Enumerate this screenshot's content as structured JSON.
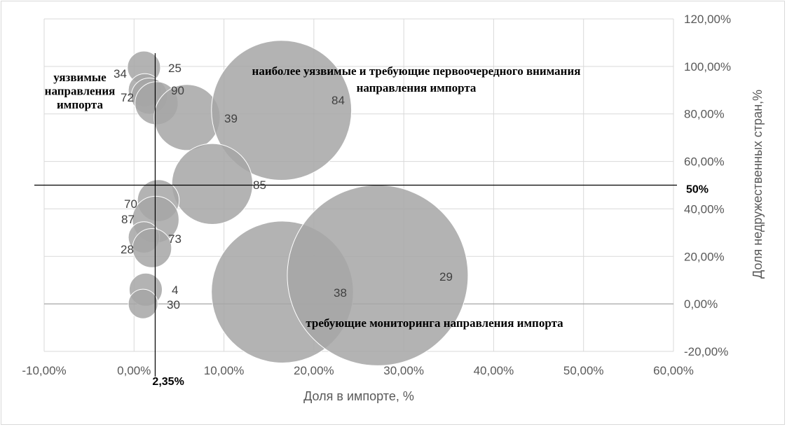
{
  "chart_data": {
    "type": "bubble",
    "xlabel": "Доля в импорте, %",
    "ylabel": "Доля недружественных стран,%",
    "xlim": [
      -10,
      60
    ],
    "ylim": [
      -20,
      120
    ],
    "x_ticks": [
      "-10,00%",
      "0,00%",
      "10,00%",
      "20,00%",
      "30,00%",
      "40,00%",
      "50,00%",
      "60,00%"
    ],
    "y_ticks": [
      "-20,00%",
      "0,00%",
      "20,00%",
      "40,00%",
      "60,00%",
      "80,00%",
      "100,00%",
      "120,00%"
    ],
    "grid": true,
    "reference_lines": {
      "x": {
        "value": 2.35,
        "label": "2,35%"
      },
      "y": {
        "value": 50,
        "label": "50%"
      }
    },
    "points": [
      {
        "label": "25",
        "x": 1.1,
        "y": 99.5,
        "size": 1
      },
      {
        "label": "34",
        "x": 1.2,
        "y": 90.0,
        "size": 1
      },
      {
        "label": "72",
        "x": 1.7,
        "y": 87.5,
        "size": 1.2
      },
      {
        "label": "90",
        "x": 2.5,
        "y": 84.5,
        "size": 1.7
      },
      {
        "label": "39",
        "x": 5.9,
        "y": 78.5,
        "size": 4
      },
      {
        "label": "84",
        "x": 16.4,
        "y": 81.5,
        "size": 18
      },
      {
        "label": "85",
        "x": 8.7,
        "y": 50.5,
        "size": 6
      },
      {
        "label": "70",
        "x": 2.7,
        "y": 43.5,
        "size": 1.6
      },
      {
        "label": "87",
        "x": 2.4,
        "y": 35.5,
        "size": 2
      },
      {
        "label": "28",
        "x": 1.1,
        "y": 28.0,
        "size": 0.9
      },
      {
        "label": "73",
        "x": 2.0,
        "y": 23.5,
        "size": 1.4
      },
      {
        "label": "4",
        "x": 1.3,
        "y": 6.0,
        "size": 1
      },
      {
        "label": "30",
        "x": 1.0,
        "y": 0.0,
        "size": 0.8
      },
      {
        "label": "38",
        "x": 16.5,
        "y": 5.0,
        "size": 18.5
      },
      {
        "label": "29",
        "x": 27.1,
        "y": 12.0,
        "size": 30
      }
    ],
    "annotations": {
      "top_left": [
        "уязвимые",
        "направления",
        "импорта"
      ],
      "top_right": [
        "наиболее уязвимые и требующие первоочередного внимания",
        "направления импорта"
      ],
      "bottom": [
        "требующие мониторинга направления импорта"
      ]
    }
  },
  "colors": {
    "bubble": "#a6a6a6",
    "grid": "#d9d9d9",
    "ref_line": "#000000",
    "text": "#595959"
  }
}
